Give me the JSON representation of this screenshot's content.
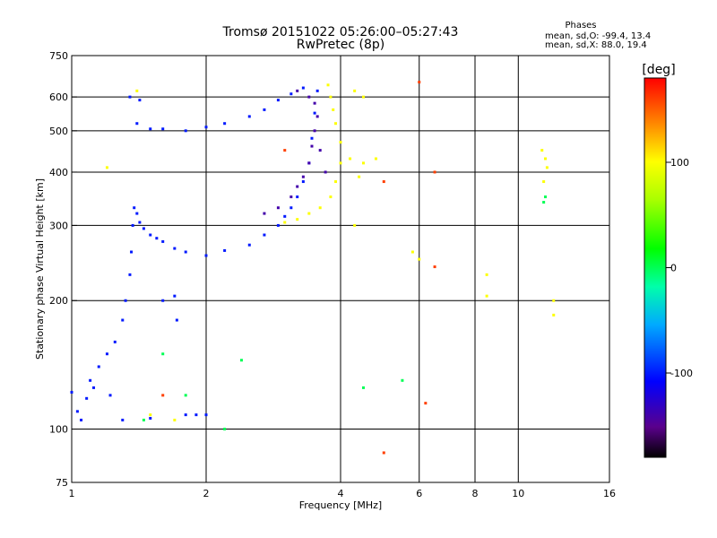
{
  "chart_data": {
    "type": "scatter",
    "title": "Tromsø 20151022 05:26:00–05:27:43",
    "subtitle": "RwPretec (8p)",
    "xlabel": "Frequency [MHz]",
    "ylabel": "Stationary phase Virtual Height [km]",
    "x_scale": "log",
    "y_scale": "log",
    "xlim": [
      1,
      16
    ],
    "ylim": [
      75,
      750
    ],
    "x_ticks": [
      1,
      2,
      4,
      6,
      8,
      10,
      16
    ],
    "y_ticks": [
      75,
      100,
      200,
      300,
      400,
      500,
      600,
      750
    ],
    "x_gridlines": [
      2,
      4,
      6,
      8,
      10
    ],
    "y_gridlines": [
      100,
      200,
      300,
      400,
      500,
      600
    ],
    "info": {
      "title": "Phases",
      "line1": "mean, sd,O: -99.4, 13.4",
      "line2": "mean, sd,X:  88.0, 19.4"
    },
    "colorbar": {
      "label": "[deg]",
      "ticks": [
        100,
        0,
        -100
      ],
      "range": [
        -180,
        180
      ]
    },
    "series": [
      {
        "phase_deg": -100,
        "points": [
          [
            1.0,
            122
          ],
          [
            1.03,
            110
          ],
          [
            1.05,
            105
          ],
          [
            1.08,
            118
          ],
          [
            1.1,
            130
          ],
          [
            1.12,
            125
          ],
          [
            1.15,
            140
          ],
          [
            1.2,
            150
          ],
          [
            1.22,
            120
          ],
          [
            1.25,
            160
          ],
          [
            1.3,
            180
          ],
          [
            1.32,
            200
          ],
          [
            1.35,
            230
          ],
          [
            1.36,
            260
          ],
          [
            1.37,
            300
          ],
          [
            1.38,
            330
          ],
          [
            1.4,
            320
          ],
          [
            1.42,
            305
          ],
          [
            1.45,
            295
          ],
          [
            1.5,
            285
          ],
          [
            1.55,
            280
          ],
          [
            1.6,
            275
          ],
          [
            1.7,
            265
          ],
          [
            1.8,
            260
          ],
          [
            2.0,
            255
          ],
          [
            2.2,
            262
          ],
          [
            2.5,
            270
          ],
          [
            2.7,
            285
          ],
          [
            2.9,
            300
          ],
          [
            3.0,
            315
          ],
          [
            3.1,
            330
          ],
          [
            3.2,
            350
          ],
          [
            3.3,
            380
          ],
          [
            3.4,
            420
          ],
          [
            3.45,
            480
          ],
          [
            3.5,
            550
          ],
          [
            3.55,
            620
          ],
          [
            1.4,
            520
          ],
          [
            1.5,
            505
          ],
          [
            1.6,
            505
          ],
          [
            1.8,
            500
          ],
          [
            2.0,
            510
          ],
          [
            2.2,
            520
          ],
          [
            2.5,
            540
          ],
          [
            2.7,
            560
          ],
          [
            2.9,
            590
          ],
          [
            3.1,
            610
          ],
          [
            3.3,
            630
          ],
          [
            1.35,
            600
          ],
          [
            1.42,
            590
          ],
          [
            1.8,
            108
          ],
          [
            1.9,
            108
          ],
          [
            2.0,
            108
          ],
          [
            1.3,
            105
          ],
          [
            1.5,
            106
          ],
          [
            1.6,
            200
          ],
          [
            1.7,
            205
          ],
          [
            1.72,
            180
          ]
        ]
      },
      {
        "phase_deg": -140,
        "points": [
          [
            3.2,
            620
          ],
          [
            3.4,
            600
          ],
          [
            3.5,
            580
          ],
          [
            3.55,
            540
          ],
          [
            3.5,
            500
          ],
          [
            3.45,
            460
          ],
          [
            3.4,
            420
          ],
          [
            3.3,
            390
          ],
          [
            3.2,
            370
          ],
          [
            3.1,
            350
          ],
          [
            2.9,
            330
          ],
          [
            2.7,
            320
          ],
          [
            3.6,
            450
          ],
          [
            3.7,
            400
          ]
        ]
      },
      {
        "phase_deg": 100,
        "points": [
          [
            3.0,
            305
          ],
          [
            3.2,
            310
          ],
          [
            3.4,
            320
          ],
          [
            3.6,
            330
          ],
          [
            3.8,
            350
          ],
          [
            3.9,
            380
          ],
          [
            4.0,
            420
          ],
          [
            4.0,
            470
          ],
          [
            3.9,
            520
          ],
          [
            3.85,
            560
          ],
          [
            3.8,
            600
          ],
          [
            3.75,
            640
          ],
          [
            4.3,
            620
          ],
          [
            4.5,
            600
          ],
          [
            4.2,
            430
          ],
          [
            4.5,
            420
          ],
          [
            4.8,
            430
          ],
          [
            4.4,
            390
          ],
          [
            4.3,
            300
          ],
          [
            5.8,
            260
          ],
          [
            6.0,
            250
          ],
          [
            1.7,
            105
          ],
          [
            1.5,
            108
          ],
          [
            11.3,
            450
          ],
          [
            11.5,
            430
          ],
          [
            11.6,
            410
          ],
          [
            11.4,
            380
          ],
          [
            12.0,
            200
          ],
          [
            12.0,
            185
          ],
          [
            8.5,
            230
          ],
          [
            8.5,
            205
          ],
          [
            1.2,
            410
          ],
          [
            1.4,
            620
          ]
        ]
      },
      {
        "phase_deg": 0,
        "points": [
          [
            1.6,
            150
          ],
          [
            1.8,
            120
          ],
          [
            2.4,
            145
          ],
          [
            4.5,
            125
          ],
          [
            5.5,
            130
          ],
          [
            11.5,
            350
          ],
          [
            11.4,
            340
          ],
          [
            1.45,
            105
          ],
          [
            2.2,
            100
          ]
        ]
      },
      {
        "phase_deg": 160,
        "points": [
          [
            6.0,
            650
          ],
          [
            3.0,
            450
          ],
          [
            5.0,
            380
          ],
          [
            6.5,
            400
          ],
          [
            6.5,
            240
          ],
          [
            1.6,
            120
          ],
          [
            6.2,
            115
          ],
          [
            5.0,
            88
          ]
        ]
      }
    ]
  }
}
